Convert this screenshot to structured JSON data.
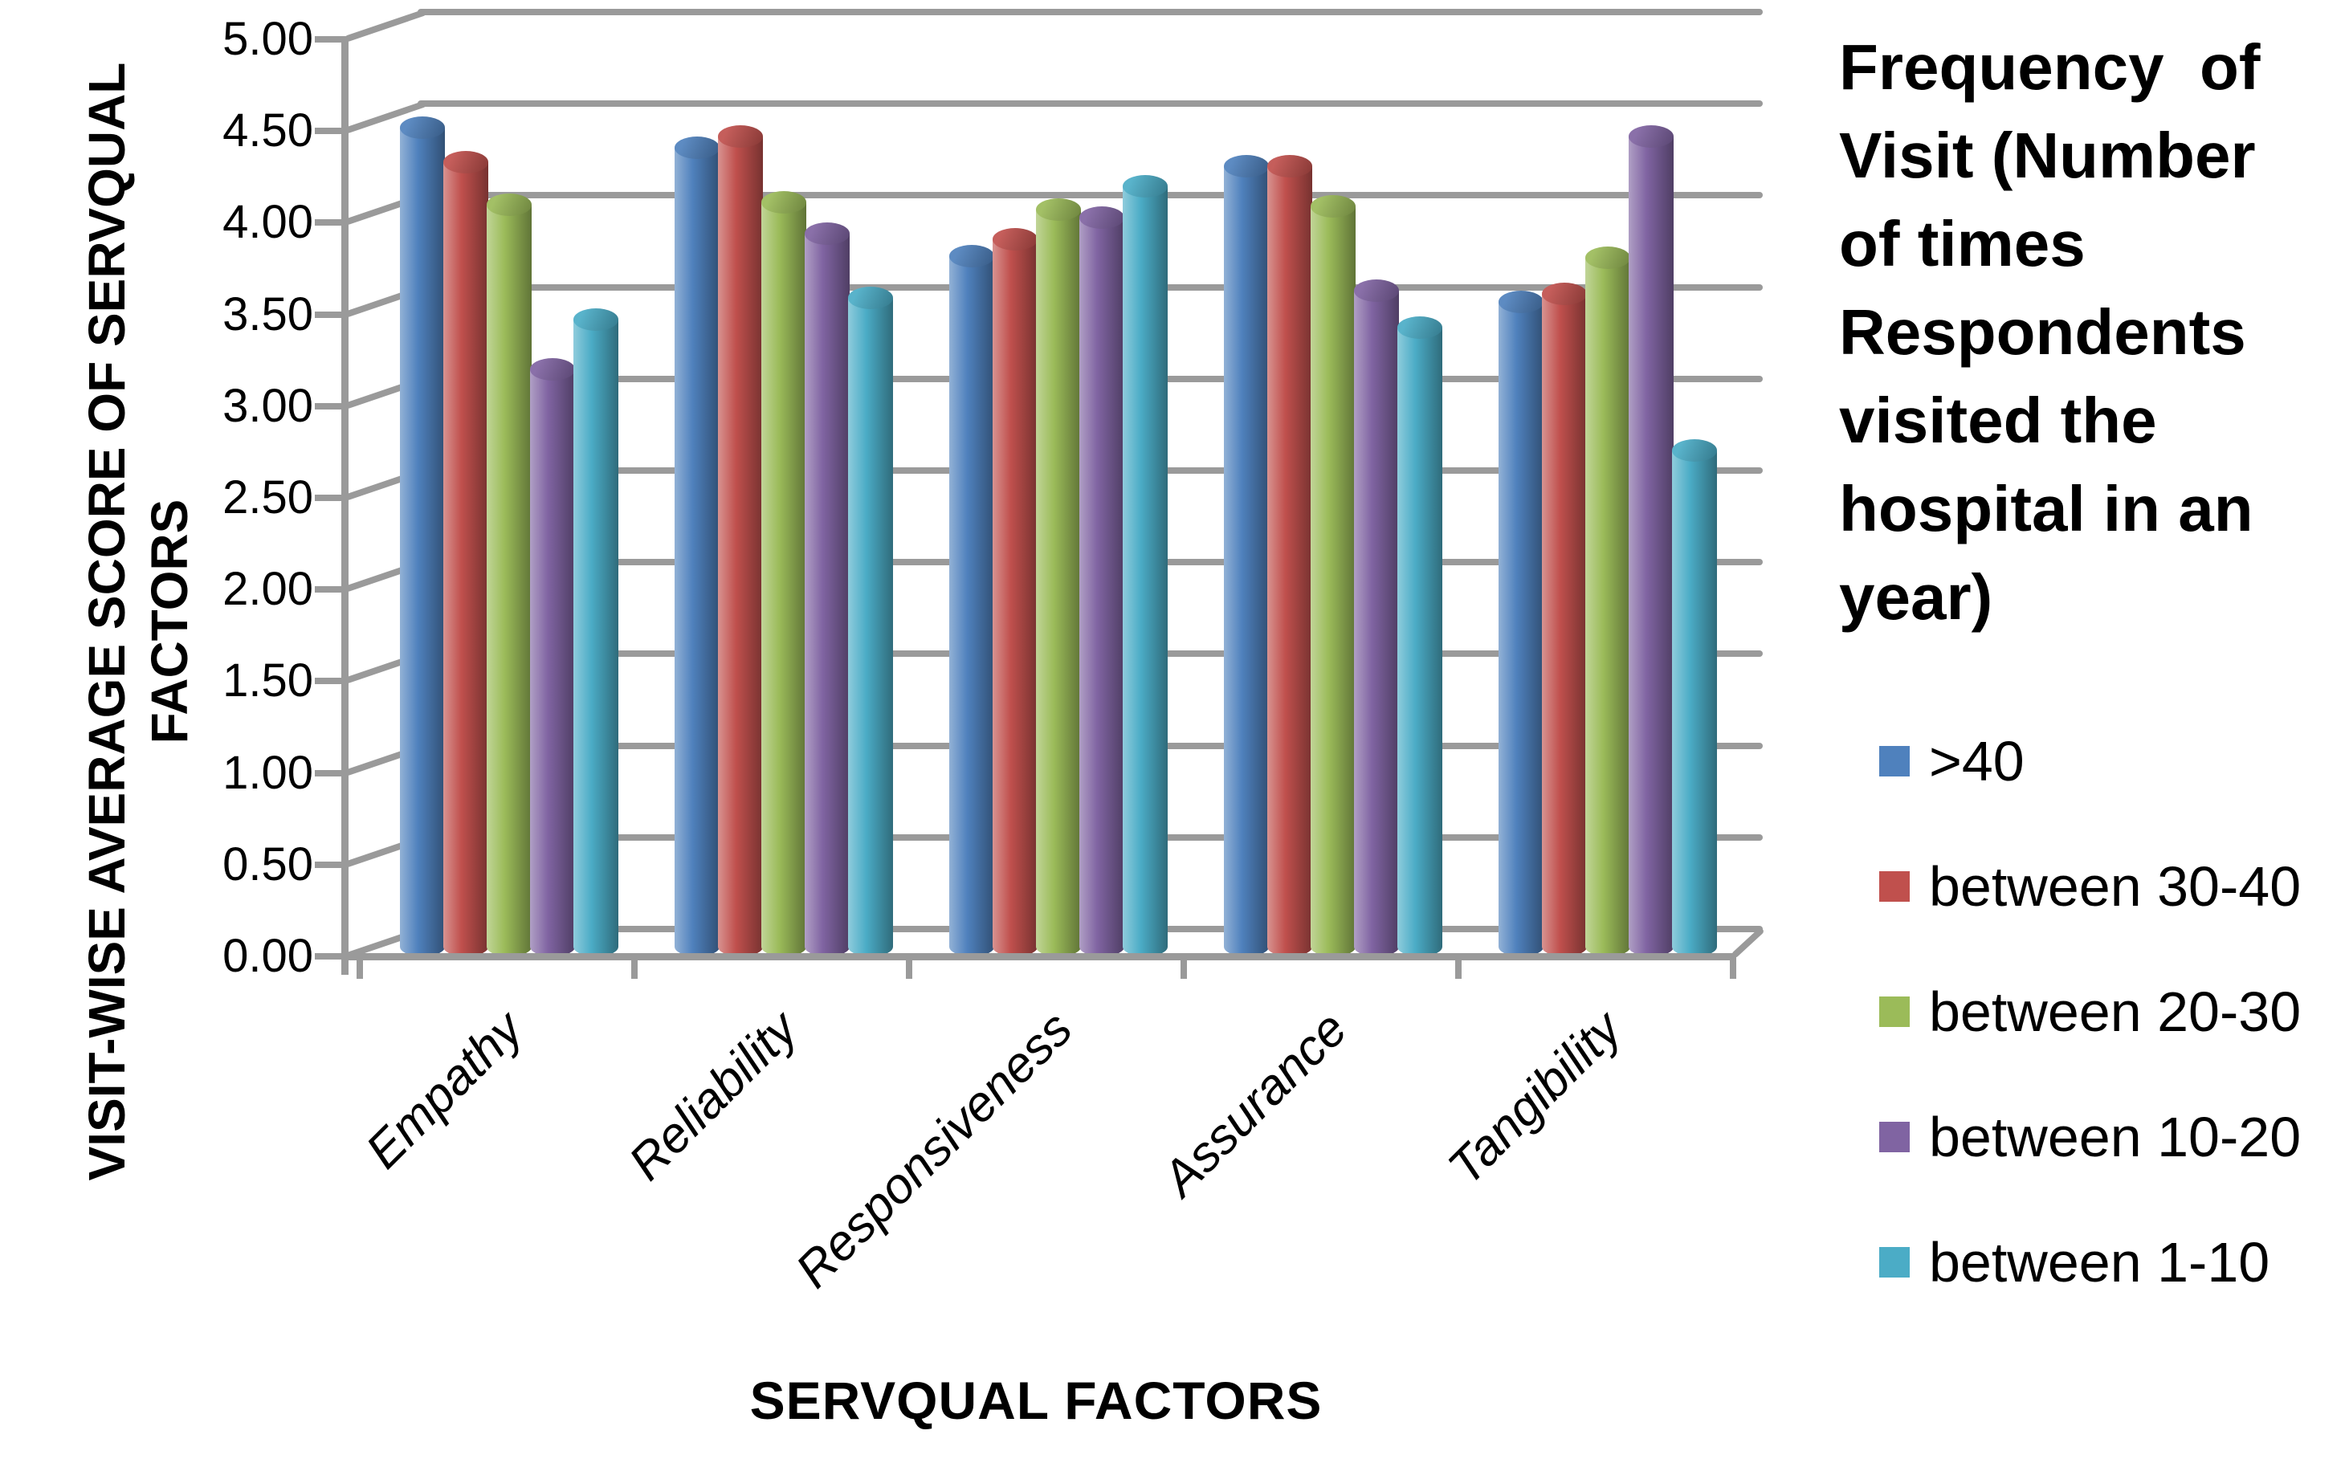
{
  "chart_data": {
    "type": "bar",
    "subtype": "3d-cylinder",
    "title": "",
    "xlabel": "SERVQUAL FACTORS",
    "ylabel": "VISIT-WISE AVERAGE SCORE OF SERVQUAL FACTORS",
    "categories": [
      "Empathy",
      "Reliability",
      "Responsiveness",
      "Assurance",
      "Tangibility"
    ],
    "series": [
      {
        "name": ">40",
        "color": "#4F81BD",
        "values": [
          4.52,
          4.41,
          3.82,
          4.31,
          3.57
        ]
      },
      {
        "name": "between 30-40",
        "color": "#C0504D",
        "values": [
          4.33,
          4.47,
          3.91,
          4.31,
          3.61
        ]
      },
      {
        "name": "between 20-30",
        "color": "#9BBB59",
        "values": [
          4.1,
          4.11,
          4.07,
          4.09,
          3.81
        ]
      },
      {
        "name": "between 10-20",
        "color": "#8064A2",
        "values": [
          3.2,
          3.94,
          4.03,
          3.63,
          4.47
        ]
      },
      {
        "name": "between 1-10",
        "color": "#4BACC6",
        "values": [
          3.47,
          3.59,
          4.2,
          3.43,
          2.76
        ]
      }
    ],
    "ylim": [
      0,
      5
    ],
    "ytick_step": 0.5,
    "ytick_labels": [
      "0.00",
      "0.50",
      "1.00",
      "1.50",
      "2.00",
      "2.50",
      "3.00",
      "3.50",
      "4.00",
      "4.50",
      "5.00"
    ],
    "grid": true,
    "gridline_color": "#9a9a9a",
    "legend_position": "right"
  },
  "axes": {
    "x_title": "SERVQUAL FACTORS",
    "y_title_line1": "VISIT-WISE AVERAGE SCORE OF SERVQUAL",
    "y_title_line2": "FACTORS"
  },
  "legend": {
    "title_lines": [
      "Frequency  of",
      "Visit (Number",
      "of times",
      "Respondents",
      "visited the",
      "hospital in an",
      "year)"
    ],
    "items": [
      {
        "label": ">40",
        "color": "#4F81BD"
      },
      {
        "label": "between 30-40",
        "color": "#C0504D"
      },
      {
        "label": "between 20-30",
        "color": "#9BBB59"
      },
      {
        "label": "between 10-20",
        "color": "#8064A2"
      },
      {
        "label": "between 1-10",
        "color": "#4BACC6"
      }
    ]
  }
}
